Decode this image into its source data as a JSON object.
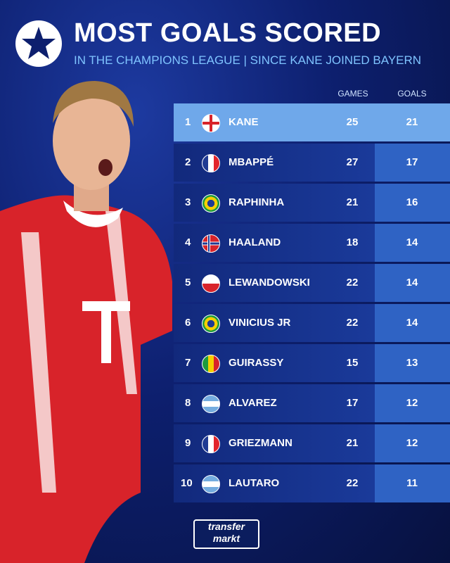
{
  "header": {
    "title": "MOST GOALS SCORED",
    "subtitle": "IN THE CHAMPIONS LEAGUE | SINCE KANE JOINED BAYERN"
  },
  "table": {
    "columns": [
      "GAMES",
      "GOALS"
    ],
    "rows": [
      [
        1,
        "KANE",
        25,
        21
      ],
      [
        2,
        "MBAPPÉ",
        27,
        17
      ],
      [
        3,
        "RAPHINHA",
        21,
        16
      ],
      [
        4,
        "HAALAND",
        18,
        14
      ],
      [
        5,
        "LEWANDOWSKI",
        22,
        14
      ],
      [
        6,
        "VINICIUS JR",
        22,
        14
      ],
      [
        7,
        "GUIRASSY",
        15,
        13
      ],
      [
        8,
        "ALVAREZ",
        17,
        12
      ],
      [
        9,
        "GRIEZMANN",
        21,
        12
      ],
      [
        10,
        "LAUTARO",
        22,
        11
      ]
    ]
  },
  "logo": {
    "line1": "transfer",
    "line2": "markt"
  }
}
